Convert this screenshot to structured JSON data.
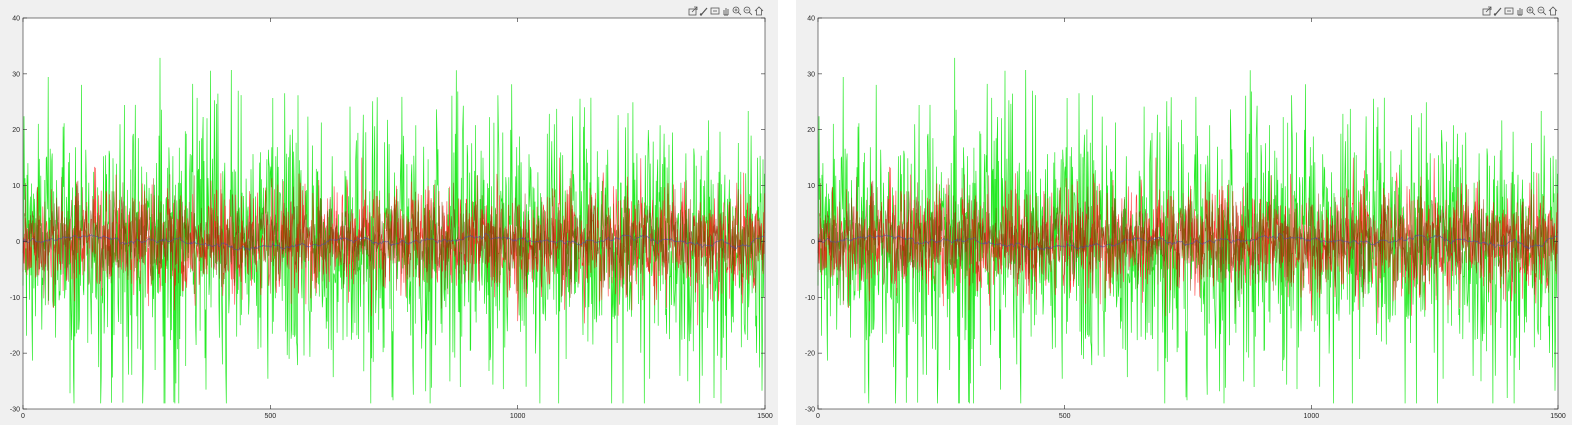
{
  "toolbar": {
    "icons": [
      "export-icon",
      "brush-icon",
      "datatip-icon",
      "pan-icon",
      "zoom-in-icon",
      "zoom-out-icon",
      "home-icon"
    ]
  },
  "colors": {
    "figure_bg": "#f0f0f0",
    "axes_bg": "#ffffff",
    "axis": "#262626",
    "green_series": "#00e600",
    "red_series": "#ff0000",
    "dark_series": "#7a3b00",
    "blue_series": "#4a4aa8"
  },
  "chart_data": [
    {
      "type": "line",
      "title": "",
      "xlabel": "",
      "ylabel": "",
      "xlim": [
        0,
        1500
      ],
      "ylim": [
        -30,
        40
      ],
      "xticks": [
        "0",
        "500",
        "1000",
        "1500"
      ],
      "yticks": [
        "-30",
        "-20",
        "-10",
        "0",
        "10",
        "20",
        "30",
        "40"
      ],
      "grid": false,
      "legend": "none",
      "series": [
        {
          "color": "#00e600",
          "approx_amplitude": 12,
          "approx_min": -29,
          "approx_max": 33.5,
          "points": 1500
        },
        {
          "color": "#ff0000",
          "approx_amplitude": 5,
          "approx_min": -15,
          "approx_max": 15,
          "points": 1500
        },
        {
          "color": "#7a3b00",
          "approx_amplitude": 4,
          "approx_min": -12,
          "approx_max": 12,
          "points": 1500
        },
        {
          "color": "#4a4aa8",
          "approx_amplitude": 1.2,
          "approx_min": -3,
          "approx_max": 3,
          "points": 1500
        }
      ]
    },
    {
      "type": "line",
      "title": "",
      "xlabel": "",
      "ylabel": "",
      "xlim": [
        0,
        1500
      ],
      "ylim": [
        -30,
        40
      ],
      "xticks": [
        "0",
        "500",
        "1000",
        "1500"
      ],
      "yticks": [
        "-30",
        "-20",
        "-10",
        "0",
        "10",
        "20",
        "30",
        "40"
      ],
      "grid": false,
      "legend": "none",
      "series": [
        {
          "color": "#00e600",
          "approx_amplitude": 12,
          "approx_min": -29,
          "approx_max": 33.5,
          "points": 1500
        },
        {
          "color": "#ff0000",
          "approx_amplitude": 5,
          "approx_min": -15,
          "approx_max": 15,
          "points": 1500
        },
        {
          "color": "#7a3b00",
          "approx_amplitude": 4,
          "approx_min": -12,
          "approx_max": 12,
          "points": 1500
        },
        {
          "color": "#4a4aa8",
          "approx_amplitude": 1.2,
          "approx_min": -3,
          "approx_max": 3,
          "points": 1500
        }
      ]
    }
  ]
}
